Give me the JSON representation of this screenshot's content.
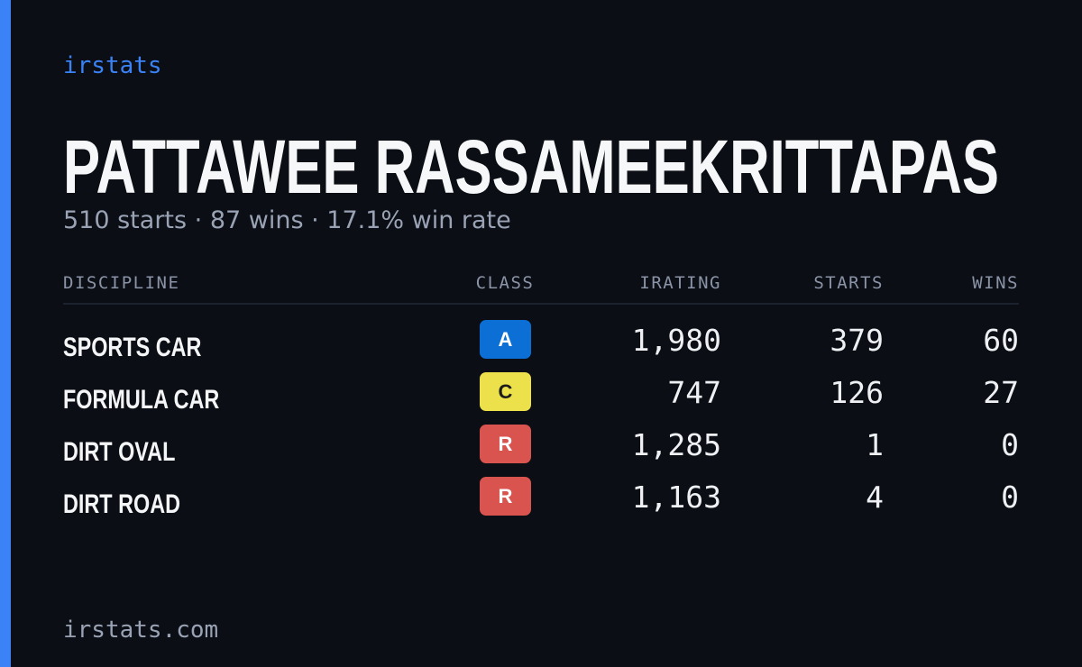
{
  "brand": "irstats",
  "header": {
    "name": "PATTAWEE RASSAMEEKRITTAPAS",
    "summary": "510 starts · 87 wins · 17.1% win rate"
  },
  "table": {
    "columns": [
      "DISCIPLINE",
      "CLASS",
      "IRATING",
      "STARTS",
      "WINS"
    ],
    "rows": [
      {
        "discipline": "SPORTS CAR",
        "class": "A",
        "class_color": "#0b6fd6",
        "class_text_color": "#ffffff",
        "irating": "1,980",
        "starts": "379",
        "wins": "60"
      },
      {
        "discipline": "FORMULA CAR",
        "class": "C",
        "class_color": "#ece04b",
        "class_text_color": "#1c1c1c",
        "irating": "747",
        "starts": "126",
        "wins": "27"
      },
      {
        "discipline": "DIRT OVAL",
        "class": "R",
        "class_color": "#d9534f",
        "class_text_color": "#ffffff",
        "irating": "1,285",
        "starts": "1",
        "wins": "0"
      },
      {
        "discipline": "DIRT ROAD",
        "class": "R",
        "class_color": "#d9534f",
        "class_text_color": "#ffffff",
        "irating": "1,163",
        "starts": "4",
        "wins": "0"
      }
    ]
  },
  "footer": "irstats.com"
}
